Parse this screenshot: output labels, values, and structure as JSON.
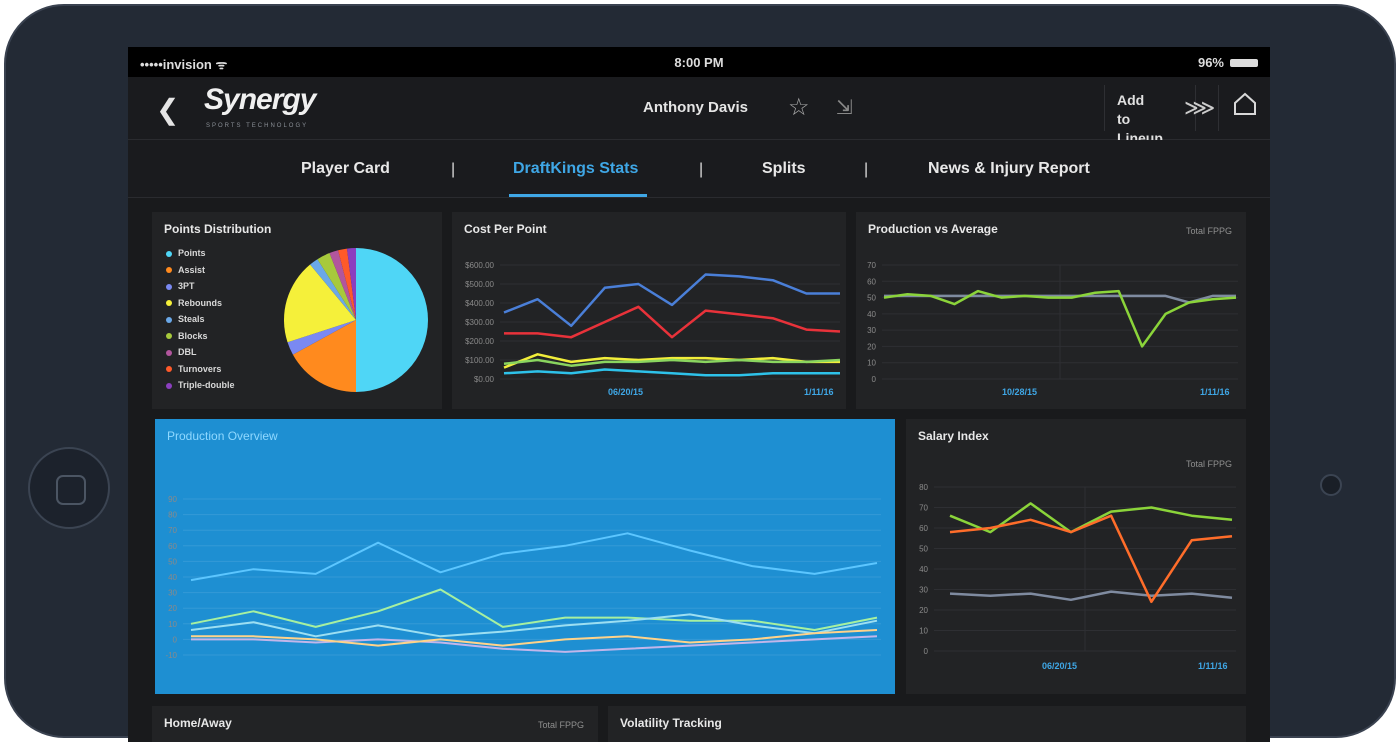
{
  "status": {
    "carrier": "•••••invision ᯤ",
    "time": "8:00 PM",
    "battery": "96%"
  },
  "header": {
    "brand": "Synergy",
    "brand_sub": "SPORTS TECHNOLOGY",
    "player_name": "Anthony Davis",
    "add_lineup": "Add to Lineup"
  },
  "tabs": [
    {
      "label": "Player Card"
    },
    {
      "label": "DraftKings Stats"
    },
    {
      "label": "Splits"
    },
    {
      "label": "News & Injury Report"
    }
  ],
  "tab_separator": "|",
  "panels": {
    "points_dist": {
      "title": "Points Distribution"
    },
    "cost_per_point": {
      "title": "Cost Per Point",
      "x_start": "06/20/15",
      "x_end": "1/11/16"
    },
    "prod_vs_avg": {
      "title": "Production vs Average",
      "subtitle": "Total FPPG",
      "x_start": "10/28/15",
      "x_end": "1/11/16"
    },
    "prod_overview": {
      "title": "Production Overview"
    },
    "salary": {
      "title": "Salary Index",
      "subtitle": "Total FPPG",
      "x_start": "06/20/15",
      "x_end": "1/11/16"
    },
    "home_away": {
      "title": "Home/Away",
      "subtitle": "Total FPPG"
    },
    "volatility": {
      "title": "Volatility Tracking"
    }
  },
  "colors": {
    "accent": "#3fa7e6",
    "overview_bg": "#1e8fd2"
  },
  "chart_data": [
    {
      "type": "pie",
      "title": "Points Distribution",
      "slices": [
        {
          "name": "Points",
          "value": 50,
          "color": "#4fd6f6"
        },
        {
          "name": "Assist",
          "value": 17,
          "color": "#ff8a1e"
        },
        {
          "name": "3PT",
          "value": 3,
          "color": "#7a89f2"
        },
        {
          "name": "Rebounds",
          "value": 19,
          "color": "#f5f03a"
        },
        {
          "name": "Steals",
          "value": 2,
          "color": "#6aa8e8"
        },
        {
          "name": "Blocks",
          "value": 3,
          "color": "#a7c93c"
        },
        {
          "name": "DBL",
          "value": 2,
          "color": "#b2569d"
        },
        {
          "name": "Turnovers",
          "value": 2,
          "color": "#ff5a2a"
        },
        {
          "name": "Triple-double",
          "value": 2,
          "color": "#8b3fbf"
        }
      ]
    },
    {
      "type": "line",
      "title": "Cost Per Point",
      "y_ticks": [
        "$600.00",
        "$500.00",
        "$400.00",
        "$300.00",
        "$200.00",
        "$100.00",
        "$0.00"
      ],
      "ylim": [
        0,
        600
      ],
      "series": [
        {
          "color": "#4a7fd8",
          "values": [
            350,
            420,
            280,
            480,
            500,
            390,
            550,
            540,
            520,
            450,
            450
          ]
        },
        {
          "color": "#e8323a",
          "values": [
            240,
            240,
            220,
            300,
            380,
            220,
            360,
            340,
            320,
            260,
            250
          ]
        },
        {
          "color": "#f1ee3a",
          "values": [
            60,
            130,
            90,
            110,
            100,
            110,
            110,
            100,
            110,
            90,
            90
          ]
        },
        {
          "color": "#8ad55f",
          "values": [
            80,
            100,
            70,
            90,
            90,
            100,
            90,
            100,
            90,
            90,
            100
          ]
        },
        {
          "color": "#2ec2ea",
          "values": [
            30,
            40,
            30,
            50,
            40,
            30,
            20,
            20,
            30,
            30,
            30
          ]
        }
      ]
    },
    {
      "type": "line",
      "title": "Production vs Average",
      "y_ticks": [
        "70",
        "60",
        "50",
        "40",
        "30",
        "20",
        "10",
        "0"
      ],
      "ylim": [
        0,
        70
      ],
      "series": [
        {
          "color": "#7f8ba0",
          "values": [
            51,
            51,
            51,
            51,
            51,
            51,
            51,
            51,
            51,
            51,
            51,
            51,
            51,
            47,
            51,
            51
          ]
        },
        {
          "color": "#8bd43a",
          "values": [
            50,
            52,
            51,
            46,
            54,
            50,
            51,
            50,
            50,
            53,
            54,
            20,
            40,
            47,
            49,
            50
          ]
        }
      ]
    },
    {
      "type": "line",
      "title": "Production Overview",
      "y_ticks": [
        "90",
        "80",
        "70",
        "60",
        "50",
        "40",
        "30",
        "20",
        "10",
        "0",
        "-10"
      ],
      "ylim": [
        -10,
        90
      ],
      "series": [
        {
          "color": "#5cc6ff",
          "values": [
            38,
            45,
            42,
            62,
            43,
            55,
            60,
            68,
            57,
            47,
            42,
            49
          ]
        },
        {
          "color": "#a6f0a0",
          "values": [
            10,
            18,
            8,
            18,
            32,
            8,
            14,
            14,
            12,
            12,
            6,
            14
          ]
        },
        {
          "color": "#9cdff2",
          "values": [
            6,
            11,
            2,
            9,
            2,
            5,
            9,
            12,
            16,
            9,
            4,
            12
          ]
        },
        {
          "color": "#c2b6ea",
          "values": [
            0,
            0,
            -2,
            0,
            -2,
            -6,
            -8,
            -6,
            -4,
            -2,
            0,
            2
          ]
        },
        {
          "color": "#ffd38a",
          "values": [
            2,
            2,
            0,
            -4,
            0,
            -4,
            0,
            2,
            -2,
            0,
            4,
            6
          ]
        }
      ]
    },
    {
      "type": "line",
      "title": "Salary Index",
      "y_ticks": [
        "80",
        "70",
        "60",
        "50",
        "40",
        "30",
        "20",
        "10",
        "0"
      ],
      "ylim": [
        0,
        80
      ],
      "series": [
        {
          "color": "#7f8ba0",
          "values": [
            28,
            27,
            28,
            25,
            29,
            27,
            28,
            26
          ]
        },
        {
          "color": "#8bd43a",
          "values": [
            66,
            58,
            72,
            58,
            68,
            70,
            66,
            64
          ]
        },
        {
          "color": "#ff6d2a",
          "values": [
            58,
            60,
            64,
            58,
            66,
            24,
            54,
            56
          ]
        }
      ]
    }
  ]
}
